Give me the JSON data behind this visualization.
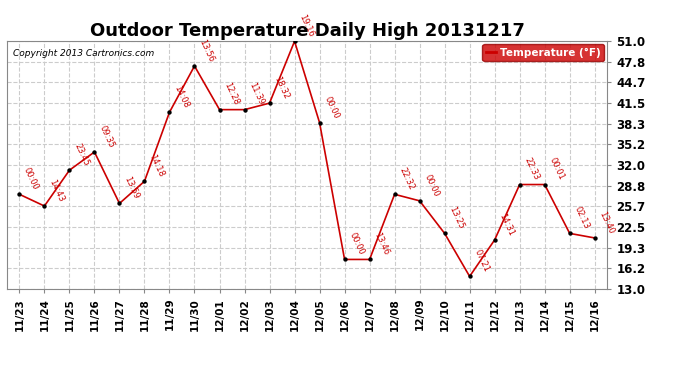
{
  "title": "Outdoor Temperature Daily High 20131217",
  "copyright_text": "Copyright 2013 Cartronics.com",
  "legend_label": "Temperature (°F)",
  "x_labels": [
    "11/23",
    "11/24",
    "11/25",
    "11/26",
    "11/27",
    "11/28",
    "11/29",
    "11/30",
    "12/01",
    "12/02",
    "12/03",
    "12/04",
    "12/05",
    "12/06",
    "12/07",
    "12/08",
    "12/09",
    "12/10",
    "12/11",
    "12/12",
    "12/13",
    "12/14",
    "12/15",
    "12/16"
  ],
  "y_values": [
    27.5,
    25.7,
    31.2,
    34.0,
    26.1,
    29.5,
    40.1,
    47.2,
    40.5,
    40.5,
    41.5,
    51.0,
    38.5,
    17.5,
    17.5,
    27.5,
    26.5,
    21.5,
    14.9,
    20.5,
    29.0,
    29.0,
    21.5,
    20.8
  ],
  "point_labels": [
    "00:00",
    "14:43",
    "23:45",
    "09:35",
    "13:59",
    "14:18",
    "14:08",
    "13:56",
    "12:28",
    "11:39",
    "18:32",
    "19:16",
    "00:00",
    "00:00",
    "13:46",
    "22:32",
    "00:00",
    "13:25",
    "07:21",
    "14:31",
    "22:33",
    "00:01",
    "02:13",
    "13:40"
  ],
  "line_color": "#cc0000",
  "marker_color": "#000000",
  "background_color": "#ffffff",
  "grid_color": "#cccccc",
  "ylim": [
    13.0,
    51.0
  ],
  "yticks": [
    13.0,
    16.2,
    19.3,
    22.5,
    25.7,
    28.8,
    32.0,
    35.2,
    38.3,
    41.5,
    44.7,
    47.8,
    51.0
  ],
  "title_fontsize": 13,
  "legend_bg": "#cc0000",
  "legend_fg": "#ffffff"
}
